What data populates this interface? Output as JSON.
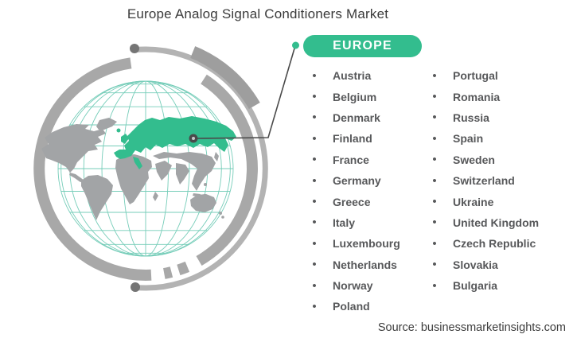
{
  "title": "Europe Analog Signal Conditioners Market",
  "region": {
    "badge_label": "EUROPE",
    "countries_col1": [
      "Austria",
      "Belgium",
      "Denmark",
      "Finland",
      "France",
      "Germany",
      "Greece",
      "Italy",
      "Luxembourg",
      "Netherlands",
      "Norway",
      "Poland"
    ],
    "countries_col2": [
      "Portugal",
      "Romania",
      "Russia",
      "Spain",
      "Sweden",
      "Switzerland",
      "Ukraine",
      "United Kingdom",
      "Czech Republic",
      "Slovakia",
      "Bulgaria"
    ]
  },
  "footer": {
    "source": "Source: businessmarketinsights.com"
  },
  "list_style": {
    "bullet_glyph": "•"
  },
  "colors": {
    "accent_green": "#33bd8e",
    "map_gray": "#a2a4a6",
    "ring_gray": "#a8a8a8",
    "thin_arc_gray": "#b3b3b3",
    "outer_arc_gray": "#9e9e9e",
    "arc_dot_gray": "#757575",
    "graticule_teal": "#76cdb9",
    "title_text": "#3a3a3a",
    "country_text": "#57585a",
    "connector_dark": "#4a4a4a",
    "badge_text": "#ffffff",
    "source_text": "#3d3d3d"
  }
}
